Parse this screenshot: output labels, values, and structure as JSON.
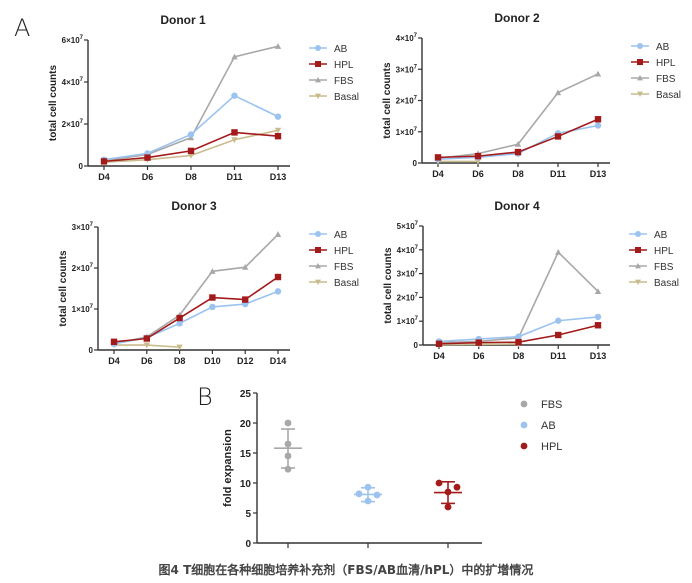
{
  "panels": {
    "a": "A",
    "b": "B"
  },
  "caption": "图4 T细胞在各种细胞培养补充剂（FBS/AB血清/hPL）中的扩增情况",
  "colors": {
    "AB": "#9cc3ef",
    "HPL": "#a31a1a",
    "FBS": "#a8a8a8",
    "Basal": "#c9bb8c"
  },
  "chart_data": [
    {
      "type": "line",
      "title": "Donor 1",
      "xlabel": "",
      "ylabel": "total cell counts",
      "categories": [
        "D4",
        "D6",
        "D8",
        "D11",
        "D13"
      ],
      "ylim": [
        0,
        6
      ],
      "yticks": [
        0,
        2,
        4,
        6
      ],
      "ytick_labels": [
        "0",
        "2×10⁷",
        "4×10⁷",
        "6×10⁷"
      ],
      "yunit": "1e7",
      "legend": "right",
      "series": [
        {
          "name": "AB",
          "marker": "circle",
          "values": [
            0.3,
            0.6,
            1.5,
            3.35,
            2.35
          ]
        },
        {
          "name": "HPL",
          "marker": "square",
          "values": [
            0.22,
            0.4,
            0.72,
            1.6,
            1.42
          ]
        },
        {
          "name": "FBS",
          "marker": "triangle-up",
          "values": [
            0.25,
            0.55,
            1.35,
            5.2,
            5.7
          ]
        },
        {
          "name": "Basal",
          "marker": "triangle-down",
          "values": [
            0.18,
            0.3,
            0.5,
            1.25,
            1.7
          ]
        }
      ]
    },
    {
      "type": "line",
      "title": "Donor 2",
      "xlabel": "",
      "ylabel": "total cell counts",
      "categories": [
        "D4",
        "D6",
        "D8",
        "D11",
        "D13"
      ],
      "ylim": [
        0,
        4
      ],
      "yticks": [
        0,
        1,
        2,
        3,
        4
      ],
      "ytick_labels": [
        "0",
        "1×10⁷",
        "2×10⁷",
        "3×10⁷",
        "4×10⁷"
      ],
      "yunit": "1e7",
      "legend": "right",
      "series": [
        {
          "name": "AB",
          "marker": "circle",
          "values": [
            0.12,
            0.18,
            0.3,
            0.95,
            1.2
          ]
        },
        {
          "name": "HPL",
          "marker": "square",
          "values": [
            0.18,
            0.22,
            0.35,
            0.85,
            1.4
          ]
        },
        {
          "name": "FBS",
          "marker": "triangle-up",
          "values": [
            0.15,
            0.3,
            0.6,
            2.25,
            2.85
          ]
        },
        {
          "name": "Basal",
          "marker": "triangle-down",
          "values": [
            0.05,
            0.05,
            null,
            null,
            null
          ]
        }
      ]
    },
    {
      "type": "line",
      "title": "Donor 3",
      "xlabel": "",
      "ylabel": "total cell counts",
      "categories": [
        "D4",
        "D6",
        "D8",
        "D10",
        "D12",
        "D14"
      ],
      "ylim": [
        0,
        3
      ],
      "yticks": [
        0,
        1,
        2,
        3
      ],
      "ytick_labels": [
        "0",
        "1×10⁷",
        "2×10⁷",
        "3×10⁷"
      ],
      "yunit": "1e7",
      "legend": "right",
      "series": [
        {
          "name": "AB",
          "marker": "circle",
          "values": [
            0.15,
            0.3,
            0.65,
            1.05,
            1.12,
            1.43
          ]
        },
        {
          "name": "HPL",
          "marker": "square",
          "values": [
            0.2,
            0.28,
            0.78,
            1.28,
            1.23,
            1.78
          ]
        },
        {
          "name": "FBS",
          "marker": "triangle-up",
          "values": [
            0.15,
            0.32,
            0.85,
            1.92,
            2.02,
            2.82
          ]
        },
        {
          "name": "Basal",
          "marker": "triangle-down",
          "values": [
            0.12,
            0.12,
            0.07,
            null,
            null,
            null
          ]
        }
      ]
    },
    {
      "type": "line",
      "title": "Donor 4",
      "xlabel": "",
      "ylabel": "total cell counts",
      "categories": [
        "D4",
        "D6",
        "D8",
        "D11",
        "D13"
      ],
      "ylim": [
        0,
        5
      ],
      "yticks": [
        0,
        1,
        2,
        3,
        4,
        5
      ],
      "ytick_labels": [
        "0",
        "1×10⁷",
        "2×10⁷",
        "3×10⁷",
        "4×10⁷",
        "5×10⁷"
      ],
      "yunit": "1e7",
      "legend": "right",
      "series": [
        {
          "name": "AB",
          "marker": "circle",
          "values": [
            0.15,
            0.25,
            0.35,
            1.02,
            1.18
          ]
        },
        {
          "name": "HPL",
          "marker": "square",
          "values": [
            0.05,
            0.1,
            0.12,
            0.42,
            0.83
          ]
        },
        {
          "name": "FBS",
          "marker": "triangle-up",
          "values": [
            0.1,
            0.15,
            0.3,
            3.9,
            2.25
          ]
        },
        {
          "name": "Basal",
          "marker": "triangle-down",
          "values": [
            0.02,
            0.03,
            0.04,
            null,
            null
          ]
        }
      ]
    },
    {
      "type": "scatter",
      "title": "",
      "xlabel": "",
      "ylabel": "fold expansion",
      "categories": [
        "FBS",
        "AB",
        "HPL"
      ],
      "ylim": [
        0,
        25
      ],
      "yticks": [
        0,
        5,
        10,
        15,
        20,
        25
      ],
      "ytick_labels": [
        "0",
        "5",
        "10",
        "15",
        "20",
        "25"
      ],
      "legend": "right",
      "series": [
        {
          "name": "FBS",
          "points": [
            20.0,
            16.5,
            14.5,
            12.3
          ],
          "mean": 15.8,
          "sd_low": 12.5,
          "sd_high": 19.0
        },
        {
          "name": "AB",
          "points": [
            9.3,
            8.2,
            8.0,
            7.0
          ],
          "mean": 8.1,
          "sd_low": 6.9,
          "sd_high": 9.2
        },
        {
          "name": "HPL",
          "points": [
            10.0,
            9.3,
            8.5,
            6.0
          ],
          "mean": 8.4,
          "sd_low": 6.6,
          "sd_high": 10.2
        }
      ]
    }
  ]
}
